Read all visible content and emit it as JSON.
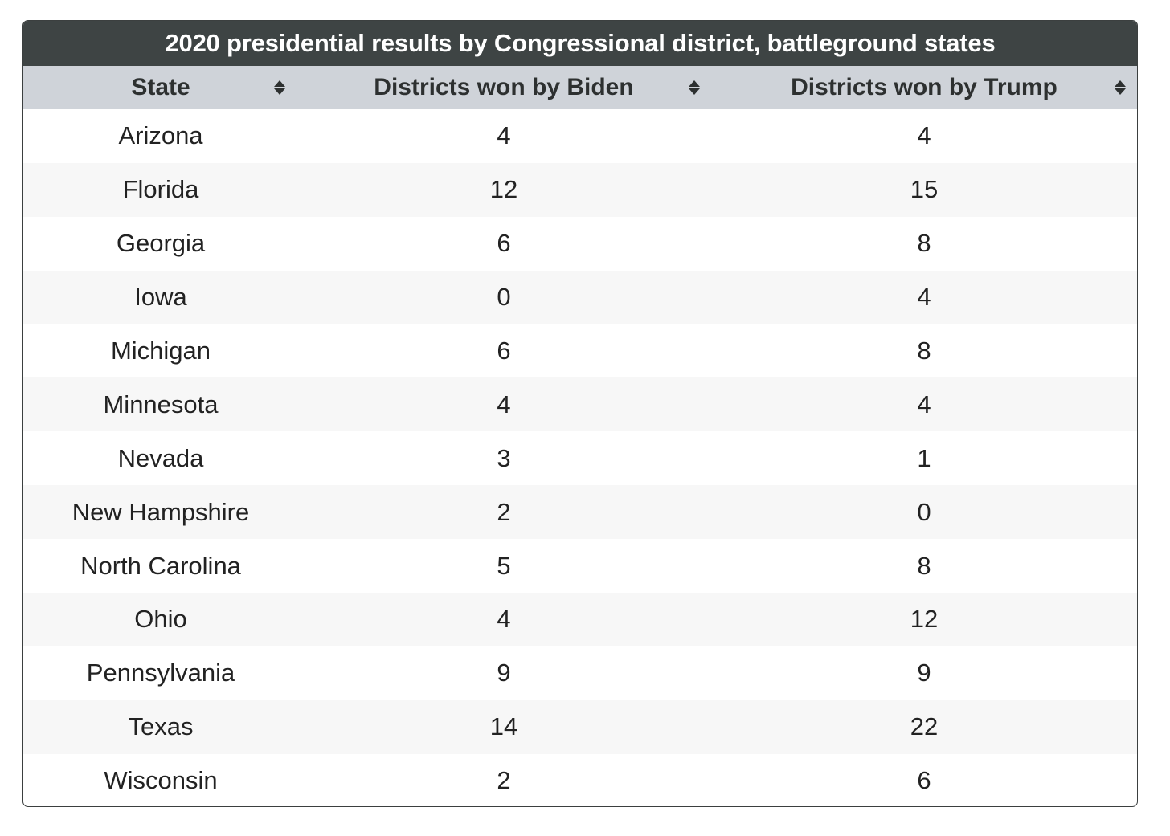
{
  "table": {
    "title": "2020 presidential results by Congressional district, battleground states",
    "headers": [
      "State",
      "Districts won by Biden",
      "Districts won by Trump"
    ],
    "sort_icon": "sort-updown-icon",
    "colors": {
      "title_bg": "#3e4444",
      "header_bg": "#cfd3d9",
      "alt_row_bg": "#f7f7f7",
      "border": "#3b3f3f"
    }
  },
  "chart_data": {
    "type": "table",
    "title": "2020 presidential results by Congressional district, battleground states",
    "columns": [
      "State",
      "Districts won by Biden",
      "Districts won by Trump"
    ],
    "rows": [
      [
        "Arizona",
        "4",
        "4"
      ],
      [
        "Florida",
        "12",
        "15"
      ],
      [
        "Georgia",
        "6",
        "8"
      ],
      [
        "Iowa",
        "0",
        "4"
      ],
      [
        "Michigan",
        "6",
        "8"
      ],
      [
        "Minnesota",
        "4",
        "4"
      ],
      [
        "Nevada",
        "3",
        "1"
      ],
      [
        "New Hampshire",
        "2",
        "0"
      ],
      [
        "North Carolina",
        "5",
        "8"
      ],
      [
        "Ohio",
        "4",
        "12"
      ],
      [
        "Pennsylvania",
        "9",
        "9"
      ],
      [
        "Texas",
        "14",
        "22"
      ],
      [
        "Wisconsin",
        "2",
        "6"
      ]
    ]
  }
}
